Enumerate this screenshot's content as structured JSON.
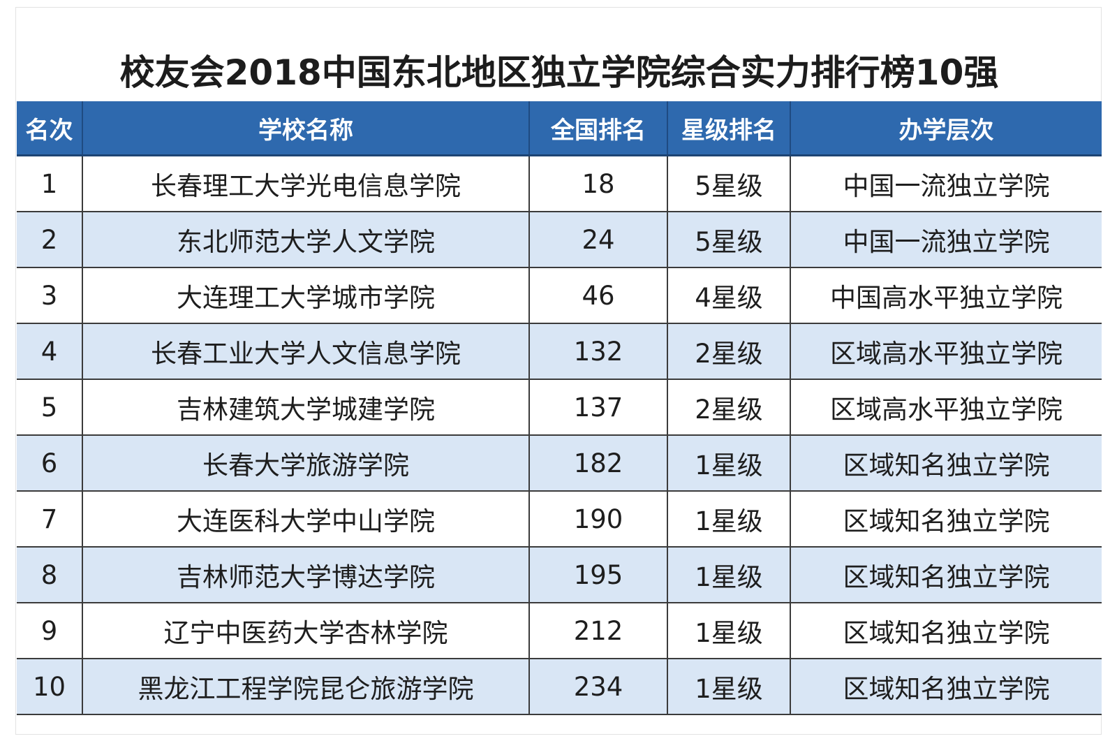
{
  "title": "校友会2018中国东北地区独立学院综合实力排行榜10强",
  "table": {
    "headers": [
      "名次",
      "学校名称",
      "全国排名",
      "星级排名",
      "办学层次"
    ],
    "rows": [
      [
        "1",
        "长春理工大学光电信息学院",
        "18",
        "5星级",
        "中国一流独立学院"
      ],
      [
        "2",
        "东北师范大学人文学院",
        "24",
        "5星级",
        "中国一流独立学院"
      ],
      [
        "3",
        "大连理工大学城市学院",
        "46",
        "4星级",
        "中国高水平独立学院"
      ],
      [
        "4",
        "长春工业大学人文信息学院",
        "132",
        "2星级",
        "区域高水平独立学院"
      ],
      [
        "5",
        "吉林建筑大学城建学院",
        "137",
        "2星级",
        "区域高水平独立学院"
      ],
      [
        "6",
        "长春大学旅游学院",
        "182",
        "1星级",
        "区域知名独立学院"
      ],
      [
        "7",
        "大连医科大学中山学院",
        "190",
        "1星级",
        "区域知名独立学院"
      ],
      [
        "8",
        "吉林师范大学博达学院",
        "195",
        "1星级",
        "区域知名独立学院"
      ],
      [
        "9",
        "辽宁中医药大学杏林学院",
        "212",
        "1星级",
        "区域知名独立学院"
      ],
      [
        "10",
        "黑龙江工程学院昆仑旅游学院",
        "234",
        "1星级",
        "区域知名独立学院"
      ]
    ]
  },
  "colors": {
    "header_bg": "#2e69ae",
    "header_text": "#ffffff",
    "row_alt_bg": "#d9e6f5",
    "row_bg": "#ffffff"
  }
}
